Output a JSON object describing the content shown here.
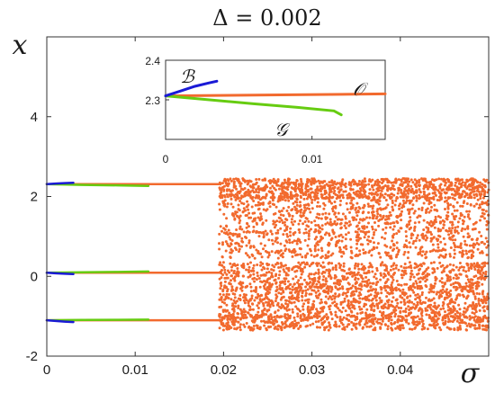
{
  "chart_data": {
    "type": "scatter",
    "title": "Δ = 0.002",
    "xlabel": "σ",
    "ylabel": "x",
    "xlim": [
      0,
      0.05
    ],
    "ylim": [
      -2,
      6
    ],
    "xticks": [
      "0",
      "0.01",
      "0.02",
      "0.03",
      "0.04"
    ],
    "xtick_values": [
      0,
      0.01,
      0.02,
      0.03,
      0.04
    ],
    "yticks": [
      "-2",
      "0",
      "2",
      "4"
    ],
    "ytick_values": [
      -2,
      0,
      2,
      4
    ],
    "grid": false,
    "colors": {
      "B": "#1a1ad6",
      "G": "#66cc11",
      "O": "#f26a2e",
      "axis": "#333333"
    },
    "branches": [
      {
        "name": "B",
        "points": [
          [
            0,
            2.31
          ],
          [
            0.001,
            2.325
          ],
          [
            0.002,
            2.335
          ],
          [
            0.003,
            2.345
          ]
        ]
      },
      {
        "name": "B",
        "points": [
          [
            0,
            0.09
          ],
          [
            0.001,
            0.075
          ],
          [
            0.002,
            0.065
          ],
          [
            0.003,
            0.055
          ]
        ]
      },
      {
        "name": "B",
        "points": [
          [
            0,
            -1.1
          ],
          [
            0.001,
            -1.12
          ],
          [
            0.002,
            -1.135
          ],
          [
            0.003,
            -1.145
          ]
        ]
      },
      {
        "name": "G",
        "points": [
          [
            0,
            2.31
          ],
          [
            0.004,
            2.29
          ],
          [
            0.008,
            2.28
          ],
          [
            0.0115,
            2.265
          ]
        ]
      },
      {
        "name": "G",
        "points": [
          [
            0,
            0.09
          ],
          [
            0.004,
            0.1
          ],
          [
            0.008,
            0.11
          ],
          [
            0.0115,
            0.12
          ]
        ]
      },
      {
        "name": "G",
        "points": [
          [
            0,
            -1.1
          ],
          [
            0.004,
            -1.095
          ],
          [
            0.008,
            -1.09
          ],
          [
            0.0115,
            -1.085
          ]
        ]
      },
      {
        "name": "O",
        "points": [
          [
            0,
            2.31
          ],
          [
            0.0195,
            2.31
          ]
        ]
      },
      {
        "name": "O",
        "points": [
          [
            0,
            0.09
          ],
          [
            0.0195,
            0.09
          ]
        ]
      },
      {
        "name": "O",
        "points": [
          [
            0,
            -1.1
          ],
          [
            0.0195,
            -1.1
          ]
        ]
      }
    ],
    "chaotic_region": {
      "series": "O",
      "x_range": [
        0.0195,
        0.05
      ],
      "bands": [
        [
          1.95,
          2.45
        ],
        [
          0.45,
          2.0
        ],
        [
          -0.3,
          0.35
        ],
        [
          -1.05,
          -0.25
        ],
        [
          -1.35,
          -1.0
        ]
      ]
    },
    "inset": {
      "xlim": [
        0,
        0.015
      ],
      "ylim": [
        2.2,
        2.4
      ],
      "xticks": [
        "0",
        "0.01"
      ],
      "xtick_values": [
        0,
        0.01
      ],
      "yticks": [
        "2.3",
        "2.4"
      ],
      "ytick_values": [
        2.3,
        2.4
      ],
      "branches": [
        {
          "name": "B",
          "label": "ℬ",
          "points": [
            [
              0,
              2.31
            ],
            [
              0.001,
              2.322
            ],
            [
              0.002,
              2.334
            ],
            [
              0.003,
              2.343
            ],
            [
              0.0035,
              2.347
            ]
          ]
        },
        {
          "name": "G",
          "label": "𝒢",
          "points": [
            [
              0,
              2.31
            ],
            [
              0.003,
              2.3
            ],
            [
              0.006,
              2.29
            ],
            [
              0.009,
              2.281
            ],
            [
              0.0115,
              2.272
            ],
            [
              0.012,
              2.262
            ]
          ]
        },
        {
          "name": "O",
          "label": "𝒪",
          "points": [
            [
              0,
              2.31
            ],
            [
              0.015,
              2.315
            ]
          ]
        }
      ]
    }
  }
}
